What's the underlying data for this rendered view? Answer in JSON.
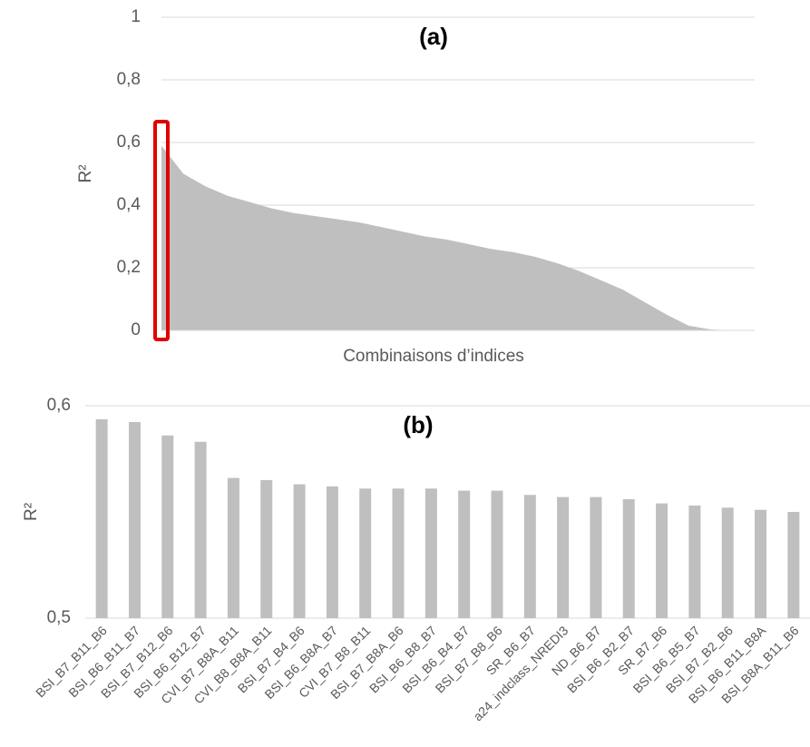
{
  "chart_data": [
    {
      "type": "area",
      "title": "(a)",
      "y_label": "R²",
      "x_label": "Combinaisons d’indices",
      "color": "#bfbfbf",
      "grid": true,
      "values": [
        0.59,
        0.5,
        0.46,
        0.43,
        0.41,
        0.39,
        0.375,
        0.365,
        0.355,
        0.345,
        0.33,
        0.315,
        0.3,
        0.29,
        0.275,
        0.26,
        0.25,
        0.235,
        0.215,
        0.19,
        0.16,
        0.13,
        0.09,
        0.05,
        0.015,
        0.003,
        0,
        0
      ],
      "ylim": [
        0,
        1
      ],
      "yticks": [
        0,
        {
          "value": 0.2,
          "label": "0,2"
        },
        {
          "value": 0.4,
          "label": "0,4"
        },
        {
          "value": 0.6,
          "label": "0,6"
        },
        {
          "value": 0.8,
          "label": "0,8"
        },
        1
      ]
    },
    {
      "type": "bar",
      "title": "(b)",
      "y_label": "R²",
      "color": "#bfbfbf",
      "grid": true,
      "categories": [
        "BSI_B7_B11_B6",
        "BSI_B6_B11_B7",
        "BSI_B7_B12_B6",
        "BSI_B6_B12_B7",
        "CVI_B7_B8A_B11",
        "CVI_B8_B8A_B11",
        "BSI_B7_B4_B6",
        "BSI_B6_B8A_B7",
        "CVI_B7_B8_B11",
        "BSI_B7_B8A_B6",
        "BSI_B6_B8_B7",
        "BSI_B6_B4_B7",
        "BSI_B7_B8_B6",
        "SR_B6_B7",
        "a24_indclass_NREDI3",
        "ND_B6_B7",
        "BSI_B6_B2_B7",
        "SR_B7_B6",
        "BSI_B6_B5_B7",
        "BSI_B7_B2_B6",
        "BSI_B6_B11_B8A",
        "BSI_B8A_B11_B6"
      ],
      "values": [
        0.5936,
        0.5923,
        0.586,
        0.583,
        0.566,
        0.565,
        0.563,
        0.562,
        0.561,
        0.561,
        0.561,
        0.56,
        0.56,
        0.558,
        0.557,
        0.557,
        0.556,
        0.554,
        0.553,
        0.552,
        0.551,
        0.55
      ],
      "ylim": [
        0.5,
        0.6
      ],
      "yticks": [
        {
          "value": 0.5,
          "label": "0,5"
        },
        {
          "value": 0.6,
          "label": "0,6"
        }
      ]
    }
  ]
}
